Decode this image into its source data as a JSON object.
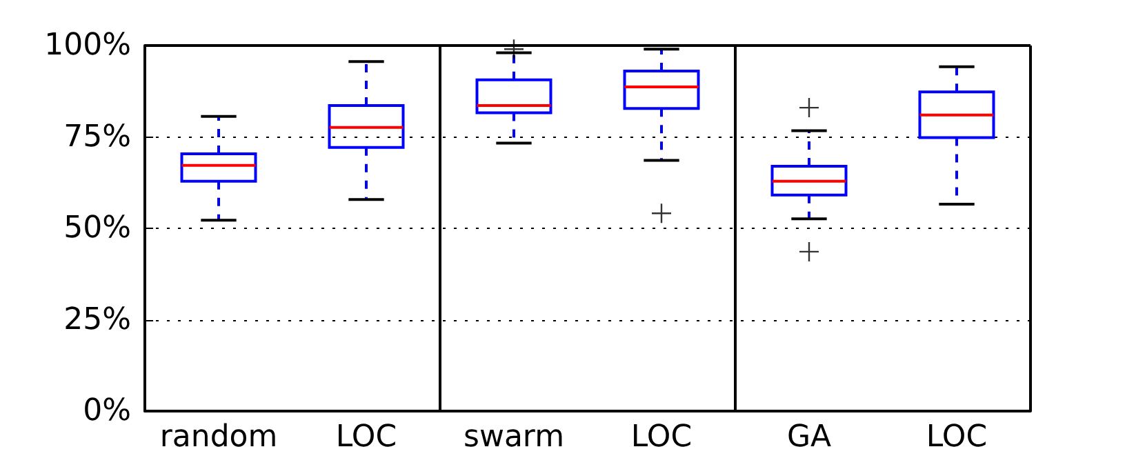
{
  "chart_data": {
    "type": "box",
    "categories": [
      "random",
      "LOC",
      "swarm",
      "LOC",
      "GA",
      "LOC"
    ],
    "boxes": [
      {
        "low": 52.2,
        "q1": 62.9,
        "median": 67.2,
        "q3": 70.4,
        "high": 80.6
      },
      {
        "low": 57.9,
        "q1": 72.1,
        "median": 77.6,
        "q3": 83.6,
        "high": 95.6
      },
      {
        "low": 73.3,
        "q1": 81.6,
        "median": 83.6,
        "q3": 90.6,
        "high": 98,
        "outliers": [
          99
        ]
      },
      {
        "low": 68.6,
        "q1": 82.8,
        "median": 88.7,
        "q3": 93.0,
        "high": 99,
        "outliers": [
          54.1
        ]
      },
      {
        "low": 52.6,
        "q1": 59.1,
        "median": 62.9,
        "q3": 67.0,
        "high": 76.7,
        "outliers": [
          43.6,
          83.0
        ]
      },
      {
        "low": 56.6,
        "q1": 74.8,
        "median": 81.0,
        "q3": 87.3,
        "high": 94.2
      }
    ],
    "ylim": [
      0,
      100
    ],
    "yticks": [
      {
        "value": 0,
        "label": "0%"
      },
      {
        "value": 25,
        "label": "25%"
      },
      {
        "value": 50,
        "label": "50%"
      },
      {
        "value": 75,
        "label": "75%"
      },
      {
        "value": 100,
        "label": "100%"
      }
    ],
    "grid": "y",
    "marker": "cross"
  }
}
